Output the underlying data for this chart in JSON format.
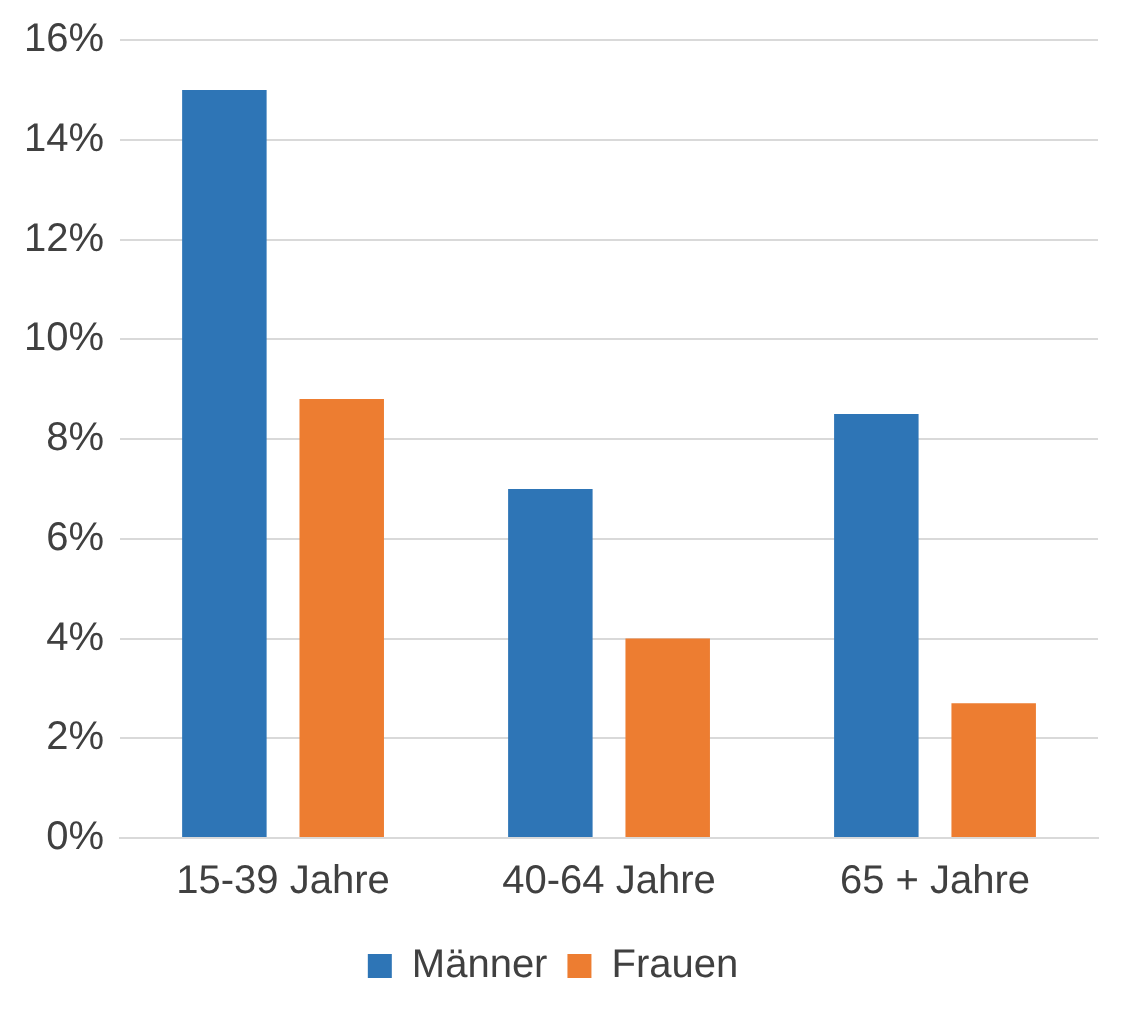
{
  "chart_data": {
    "type": "bar",
    "categories": [
      "15-39 Jahre",
      "40-64 Jahre",
      "65 + Jahre"
    ],
    "series": [
      {
        "name": "Männer",
        "color": "#2e75b6",
        "values": [
          15.0,
          7.0,
          8.5
        ]
      },
      {
        "name": "Frauen",
        "color": "#ed7d31",
        "values": [
          8.8,
          4.0,
          2.7
        ]
      }
    ],
    "ylim": [
      0,
      16
    ],
    "yticks": [
      {
        "value": 0,
        "label": "0%"
      },
      {
        "value": 2,
        "label": "2%"
      },
      {
        "value": 4,
        "label": "4%"
      },
      {
        "value": 6,
        "label": "6%"
      },
      {
        "value": 8,
        "label": "8%"
      },
      {
        "value": 10,
        "label": "10%"
      },
      {
        "value": 12,
        "label": "12%"
      },
      {
        "value": 14,
        "label": "14%"
      },
      {
        "value": 16,
        "label": "16%"
      }
    ],
    "grid": "y",
    "legend": "bottom"
  }
}
